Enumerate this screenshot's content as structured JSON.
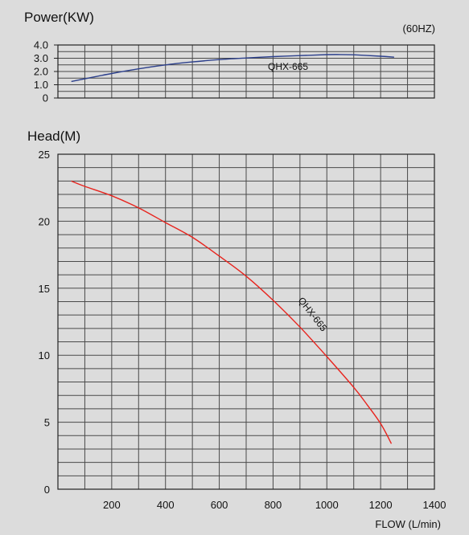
{
  "chart_data": [
    {
      "type": "line",
      "panel": "power",
      "title": "Power(KW)",
      "note": "(60HZ)",
      "ylim": [
        0,
        4.0
      ],
      "yticks": [
        "0",
        "1.0",
        "2.0",
        "3.0",
        "4.0"
      ],
      "xlim": [
        0,
        1400
      ],
      "grid": true,
      "series": [
        {
          "name": "QHX-665",
          "color": "#2b3f8c",
          "x": [
            50,
            100,
            200,
            300,
            400,
            500,
            600,
            700,
            800,
            900,
            1000,
            1050,
            1100,
            1200,
            1250
          ],
          "y": [
            1.25,
            1.45,
            1.85,
            2.2,
            2.5,
            2.72,
            2.9,
            3.02,
            3.12,
            3.2,
            3.27,
            3.28,
            3.26,
            3.15,
            3.08
          ]
        }
      ]
    },
    {
      "type": "line",
      "panel": "head",
      "title": "Head(M)",
      "xlabel": "FLOW (L/min)",
      "xlim": [
        0,
        1400
      ],
      "ylim": [
        0,
        25
      ],
      "xticks": [
        "200",
        "400",
        "600",
        "800",
        "1000",
        "1200",
        "1400"
      ],
      "yticks": [
        "0",
        "5",
        "10",
        "15",
        "20",
        "25"
      ],
      "grid": true,
      "series": [
        {
          "name": "QHX-665",
          "color": "#e8231d",
          "x": [
            50,
            100,
            200,
            300,
            400,
            500,
            600,
            700,
            800,
            900,
            1000,
            1100,
            1150,
            1200,
            1240
          ],
          "y": [
            23,
            22.6,
            21.9,
            21,
            19.9,
            18.8,
            17.4,
            15.9,
            14.1,
            12.1,
            9.9,
            7.6,
            6.3,
            4.9,
            3.4
          ]
        }
      ]
    }
  ]
}
